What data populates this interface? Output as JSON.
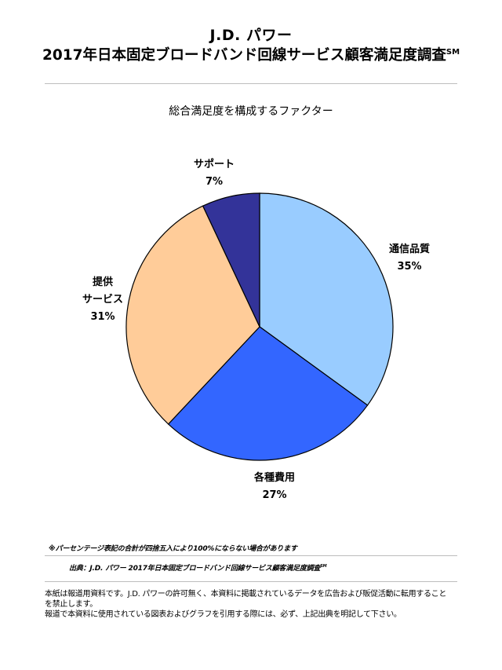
{
  "header": {
    "title_line1": "J.D. パワー",
    "title_line2": "2017年日本固定ブロードバンド回線サービス顧客満足度調査",
    "title_line2_mark": "SM"
  },
  "chart_data": {
    "type": "pie",
    "title": "総合満足度を構成するファクター",
    "slices": [
      {
        "label_lines": [
          "通信品質"
        ],
        "value": 35,
        "value_label": "35%",
        "color": "#99ccff"
      },
      {
        "label_lines": [
          "各種費用"
        ],
        "value": 27,
        "value_label": "27%",
        "color": "#3366ff"
      },
      {
        "label_lines": [
          "提供",
          "サービス"
        ],
        "value": 31,
        "value_label": "31%",
        "color": "#ffcc99"
      },
      {
        "label_lines": [
          "サポート"
        ],
        "value": 7,
        "value_label": "7%",
        "color": "#333399"
      }
    ],
    "start_angle": "12 o'clock",
    "direction": "clockwise"
  },
  "footer": {
    "note": "※パーセンテージ表記の合計が四捨五入により100%にならない場合があります",
    "source": "出典：J.D. パワー 2017年日本固定ブロードバンド回線サービス顧客満足度調査",
    "source_mark": "SM",
    "disclaimer_line1": "本紙は報道用資料です。J.D. パワーの許可無く、本資料に掲載されているデータを広告および販促活動に転用すること",
    "disclaimer_line2": "を禁止します。",
    "disclaimer_line3": "報道で本資料に使用されている図表およびグラフを引用する際には、必ず、上記出典を明記して下さい。"
  }
}
